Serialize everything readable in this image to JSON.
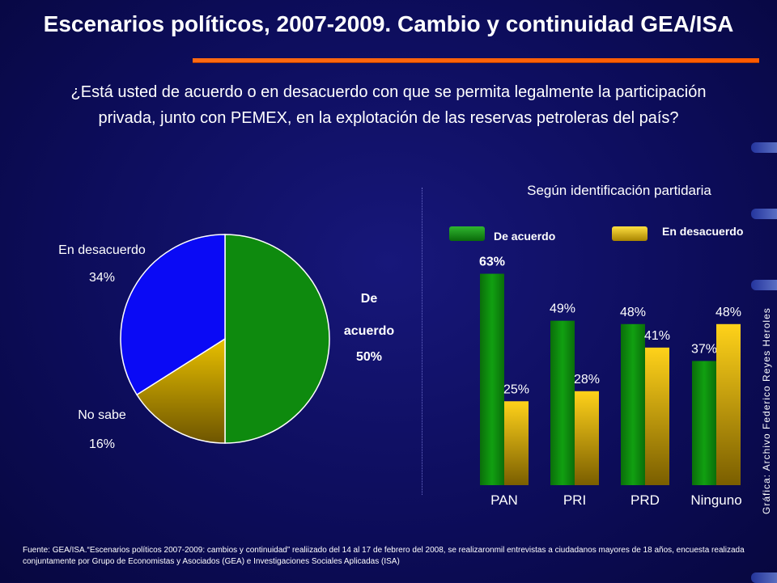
{
  "title": "Escenarios políticos, 2007-2009. Cambio y continuidad GEA/ISA",
  "question": "¿Está usted de acuerdo o en desacuerdo con que se permita legalmente la participación privada, junto con PEMEX, en la explotación de las reservas petroleras del país?",
  "chart_subtitle": "Según identificación partidaria",
  "legend": {
    "agree": "De acuerdo",
    "disagree": "En desacuerdo"
  },
  "credit": "Gráfica: Archivo Federico Reyes Heroles",
  "footnote": "Fuente: GEA/ISA.“Escenarios políticos 2007-2009: cambios y continuidad” realiizado del 14 al 17 de febrero del 2008, se realizaronmil entrevistas a ciudadanos mayores de 18 años, encuesta realizada conjuntamente por Grupo de Economistas y Asociados (GEA) e Investigaciones Sociales Aplicadas (ISA)",
  "colors": {
    "agree": "#0e8a0e",
    "disagree": "#f2c400",
    "no_sabe": "#c8a300",
    "desacuerdo_pie": "#0a0af5",
    "accent_rule": "#ff6a13"
  },
  "chart_data": [
    {
      "type": "pie",
      "slices": [
        {
          "label": "De acuerdo",
          "value": 50,
          "display": "50%"
        },
        {
          "label": "No sabe",
          "value": 16,
          "display": "16%"
        },
        {
          "label": "En desacuerdo",
          "value": 34,
          "display": "34%"
        }
      ],
      "label_lines": {
        "de_acuerdo": [
          "De",
          "acuerdo",
          "50%"
        ],
        "no_sabe": [
          "No sabe",
          "16%"
        ],
        "en_desacuerdo": [
          "En desacuerdo",
          "34%"
        ]
      }
    },
    {
      "type": "bar",
      "title": "Según identificación partidaria",
      "categories": [
        "PAN",
        "PRI",
        "PRD",
        "Ninguno"
      ],
      "series": [
        {
          "name": "De acuerdo",
          "values": [
            63,
            49,
            48,
            37
          ],
          "labels": [
            "63%",
            "49%",
            "48%",
            "37%"
          ]
        },
        {
          "name": "En desacuerdo",
          "values": [
            25,
            28,
            41,
            48
          ],
          "labels": [
            "25%",
            "28%",
            "41%",
            "48%"
          ]
        }
      ],
      "ylim": [
        0,
        70
      ]
    }
  ]
}
